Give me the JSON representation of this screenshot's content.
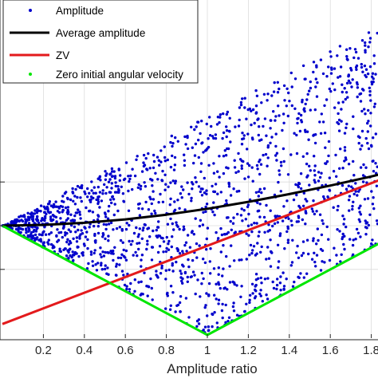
{
  "chart_data": {
    "type": "scatter",
    "xlabel": "Amplitude ratio",
    "ylabel": "",
    "title": "",
    "xlim": [
      0,
      1.85
    ],
    "ylim": [
      0,
      1.45
    ],
    "x_ticks": [
      "0.2",
      "0.4",
      "0.6",
      "0.8",
      "1",
      "1.2",
      "1.4",
      "1.6",
      "1.8"
    ],
    "x_tick_values": [
      0.2,
      0.4,
      0.6,
      0.8,
      1.0,
      1.2,
      1.4,
      1.6,
      1.8
    ],
    "y_tick_values": [
      0.6,
      1.0,
      1.4
    ],
    "grid": true,
    "legend_position": "top-left",
    "series": [
      {
        "name": "Amplitude",
        "style": "points",
        "color": "#0000cc",
        "region": {
          "x_range": [
            0,
            1.85
          ],
          "lower_bound": "|1 - x|",
          "upper_bound": "1 + x"
        },
        "point_count": 1700
      },
      {
        "name": "Average amplitude",
        "style": "line",
        "color": "#000000",
        "x": [
          0,
          0.2,
          0.4,
          0.6,
          0.8,
          1.0,
          1.2,
          1.4,
          1.6,
          1.8,
          1.85
        ],
        "values": [
          1.0,
          1.007,
          1.026,
          1.058,
          1.101,
          1.155,
          1.218,
          1.289,
          1.367,
          1.45,
          1.474
        ]
      },
      {
        "name": "ZV",
        "style": "line",
        "color": "#e31a1c",
        "x": [
          0,
          1.85
        ],
        "values": [
          0.1,
          1.425
        ]
      },
      {
        "name": "Zero initial angular velocity",
        "style": "line",
        "color": "#00e600",
        "x": [
          0,
          1.0,
          1.85
        ],
        "values": [
          1.0,
          0.0,
          0.85
        ]
      }
    ]
  }
}
